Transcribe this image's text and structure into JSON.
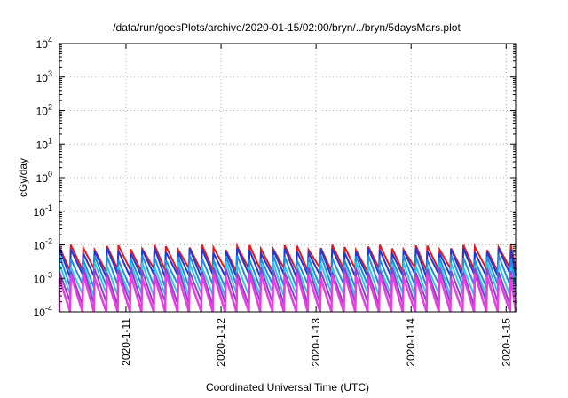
{
  "chart_data": {
    "type": "line",
    "title": "/data/run/goesPlots/archive/2020-01-15/02:00/bryn/../bryn/5daysMars.plot",
    "xlabel": "Coordinated Universal Time (UTC)",
    "ylabel": "cGy/day",
    "x_start": "2020-01-10",
    "x_range_days": [
      0.3,
      5.1
    ],
    "ylim": [
      0.0001,
      10000
    ],
    "yscale": "log",
    "grid": true,
    "x_ticks": [
      {
        "label": "2020-1-11",
        "day": 1
      },
      {
        "label": "2020-1-12",
        "day": 2
      },
      {
        "label": "2020-1-13",
        "day": 3
      },
      {
        "label": "2020-1-14",
        "day": 4
      },
      {
        "label": "2020-1-15",
        "day": 5
      }
    ],
    "y_ticks": [
      {
        "base": "10",
        "exp": "-4",
        "value": 0.0001
      },
      {
        "base": "10",
        "exp": "-3",
        "value": 0.001
      },
      {
        "base": "10",
        "exp": "-2",
        "value": 0.01
      },
      {
        "base": "10",
        "exp": "-1",
        "value": 0.1
      },
      {
        "base": "10",
        "exp": "0",
        "value": 1
      },
      {
        "base": "10",
        "exp": "1",
        "value": 10
      },
      {
        "base": "10",
        "exp": "2",
        "value": 100
      },
      {
        "base": "10",
        "exp": "3",
        "value": 1000
      },
      {
        "base": "10",
        "exp": "4",
        "value": 10000
      }
    ],
    "sawtooth": {
      "period_days": 0.125,
      "peak_days": [
        0.3,
        0.42,
        0.55,
        0.67,
        0.8,
        0.92,
        1.05,
        1.17,
        1.3,
        1.42,
        1.55,
        1.67,
        1.8,
        1.92,
        2.05,
        2.17,
        2.3,
        2.42,
        2.55,
        2.67,
        2.8,
        2.92,
        3.05,
        3.17,
        3.3,
        3.42,
        3.55,
        3.67,
        3.8,
        3.92,
        4.05,
        4.17,
        4.3,
        4.42,
        4.55,
        4.67,
        4.8,
        4.92,
        5.05
      ]
    },
    "series": [
      {
        "color": "#e8161b",
        "peak": 0.0085,
        "trough": 0.0018,
        "width": 2
      },
      {
        "color": "#1a3bd8",
        "peak": 0.0068,
        "trough": 0.0012,
        "width": 2
      },
      {
        "color": "#1f8de6",
        "peak": 0.0042,
        "trough": 0.0006,
        "width": 2
      },
      {
        "color": "#2ec7ea",
        "peak": 0.0026,
        "trough": 0.00032,
        "width": 2
      },
      {
        "color": "#8f3fc8",
        "peak": 0.0018,
        "trough": 0.00018,
        "width": 2
      },
      {
        "color": "#e63ee0",
        "peak": 0.0012,
        "trough": 8e-05,
        "width": 2.5
      }
    ]
  }
}
